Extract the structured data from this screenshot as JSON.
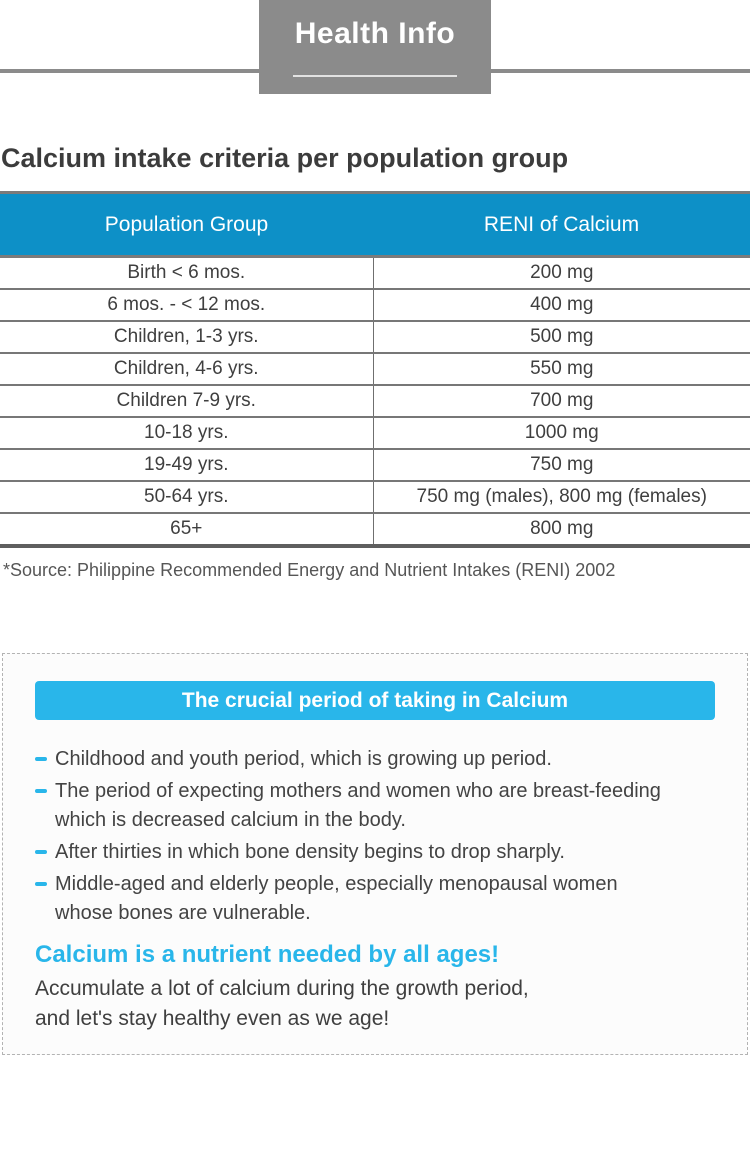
{
  "header": {
    "title": "Health Info"
  },
  "section": {
    "title": "Calcium intake criteria per population group"
  },
  "table": {
    "columns": [
      "Population Group",
      "RENI of Calcium"
    ],
    "rows": [
      [
        "Birth < 6 mos.",
        "200 mg"
      ],
      [
        "6 mos. - < 12 mos.",
        "400 mg"
      ],
      [
        "Children, 1-3 yrs.",
        "500 mg"
      ],
      [
        "Children, 4-6 yrs.",
        "550 mg"
      ],
      [
        "Children 7-9 yrs.",
        "700 mg"
      ],
      [
        "10-18 yrs.",
        "1000 mg"
      ],
      [
        "19-49 yrs.",
        "750 mg"
      ],
      [
        "50-64 yrs.",
        "750 mg (males), 800 mg (females)"
      ],
      [
        "65+",
        "800 mg"
      ]
    ],
    "source": "*Source: Philippine Recommended Energy and Nutrient Intakes (RENI) 2002"
  },
  "info_box": {
    "banner": "The crucial period of taking in Calcium",
    "bullets": [
      [
        "Childhood and youth period, which is growing up period."
      ],
      [
        "The period of expecting mothers and women who are breast-feeding",
        "which is decreased calcium in the body."
      ],
      [
        "After thirties in which bone density begins to drop sharply."
      ],
      [
        "Middle-aged and elderly people, especially menopausal women",
        "whose bones are vulnerable."
      ]
    ],
    "heading": "Calcium is a nutrient needed by all ages!",
    "closing_lines": [
      "Accumulate a lot of calcium during the growth period,",
      "and let's stay healthy even as we age!"
    ]
  },
  "colors": {
    "header_gray": "#8b8b8b",
    "table_header_blue": "#0d90c7",
    "accent_cyan": "#29b6ea",
    "body_text": "#3f3f3f",
    "border_gray": "#7b7b7b"
  }
}
